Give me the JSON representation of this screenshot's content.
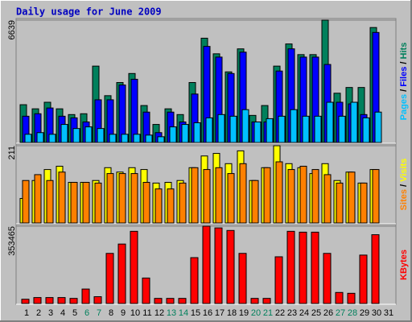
{
  "chart_data": [
    {
      "type": "bar",
      "title": "Daily usage for June 2009",
      "series": [
        {
          "name": "Hits",
          "color": "#00805c",
          "values": [
            2050,
            1827,
            2183,
            1827,
            1515,
            1560,
            4144,
            2540,
            3253,
            3743,
            2005,
            980,
            1827,
            1515,
            3253,
            5659,
            4812,
            3832,
            5080,
            1470,
            2005,
            4144,
            5347,
            4768,
            4768,
            6639,
            2674,
            2985,
            2985,
            6238,
            null
          ]
        },
        {
          "name": "Files",
          "color": "#0000ff",
          "values": [
            1426,
            1560,
            1872,
            1426,
            1337,
            1114,
            2317,
            2317,
            3119,
            3431,
            1649,
            535,
            1649,
            1114,
            2629,
            5214,
            4634,
            3743,
            4902,
            1114,
            1114,
            3877,
            5080,
            4634,
            4634,
            4233,
            2183,
            2094,
            1515,
            5971,
            null
          ]
        },
        {
          "name": "Pages",
          "color": "#00c0ff",
          "values": [
            446,
            535,
            446,
            980,
            758,
            847,
            758,
            446,
            446,
            446,
            401,
            312,
            847,
            980,
            1069,
            1337,
            1515,
            1426,
            1782,
            1114,
            1292,
            1426,
            1782,
            1426,
            1426,
            2183,
            1426,
            2183,
            1337,
            1649,
            null
          ]
        }
      ],
      "legend_separator": " / ",
      "ylim": [
        0,
        6639
      ],
      "yticks": [
        6639
      ],
      "grid": true
    },
    {
      "type": "bar",
      "series": [
        {
          "name": "Visits",
          "color": "#ffff00",
          "values": [
            67,
            116,
            146,
            155,
            111,
            111,
            116,
            151,
            139,
            151,
            146,
            109,
            111,
            116,
            151,
            183,
            190,
            162,
            197,
            116,
            151,
            211,
            162,
            151,
            135,
            162,
            116,
            139,
            109,
            146,
            null
          ]
        },
        {
          "name": "Sites",
          "color": "#ff8000",
          "values": [
            116,
            132,
            116,
            139,
            111,
            111,
            109,
            135,
            135,
            135,
            111,
            93,
            93,
            109,
            151,
            146,
            151,
            135,
            162,
            116,
            151,
            167,
            146,
            155,
            146,
            132,
            109,
            139,
            109,
            146,
            null
          ]
        }
      ],
      "legend_separator": " / ",
      "ylim": [
        0,
        211
      ],
      "yticks": [
        211
      ],
      "grid": true
    },
    {
      "type": "bar",
      "categories": [
        "1",
        "2",
        "3",
        "4",
        "5",
        "6",
        "7",
        "8",
        "9",
        "10",
        "11",
        "12",
        "13",
        "14",
        "15",
        "16",
        "17",
        "18",
        "19",
        "20",
        "21",
        "22",
        "23",
        "24",
        "25",
        "26",
        "27",
        "28",
        "29",
        "30",
        "31"
      ],
      "category_colors": [
        "#000",
        "#000",
        "#000",
        "#000",
        "#000",
        "#00805c",
        "#00805c",
        "#000",
        "#000",
        "#000",
        "#000",
        "#000",
        "#00805c",
        "#00805c",
        "#000",
        "#000",
        "#000",
        "#000",
        "#000",
        "#00805c",
        "#00805c",
        "#000",
        "#000",
        "#000",
        "#000",
        "#000",
        "#00805c",
        "#00805c",
        "#000",
        "#000",
        "#000"
      ],
      "series": [
        {
          "name": "KBytes",
          "color": "#ff0000",
          "values": [
            19420,
            27190,
            27190,
            27190,
            23300,
            66030,
            31070,
            229160,
            271880,
            330140,
            116520,
            23300,
            23300,
            23300,
            209740,
            353465,
            345680,
            334020,
            229160,
            23300,
            23300,
            213620,
            330140,
            326260,
            326260,
            229160,
            50490,
            46610,
            221390,
            314610,
            null
          ]
        }
      ],
      "ylim": [
        0,
        353465
      ],
      "yticks": [
        353465
      ],
      "grid": true
    }
  ]
}
